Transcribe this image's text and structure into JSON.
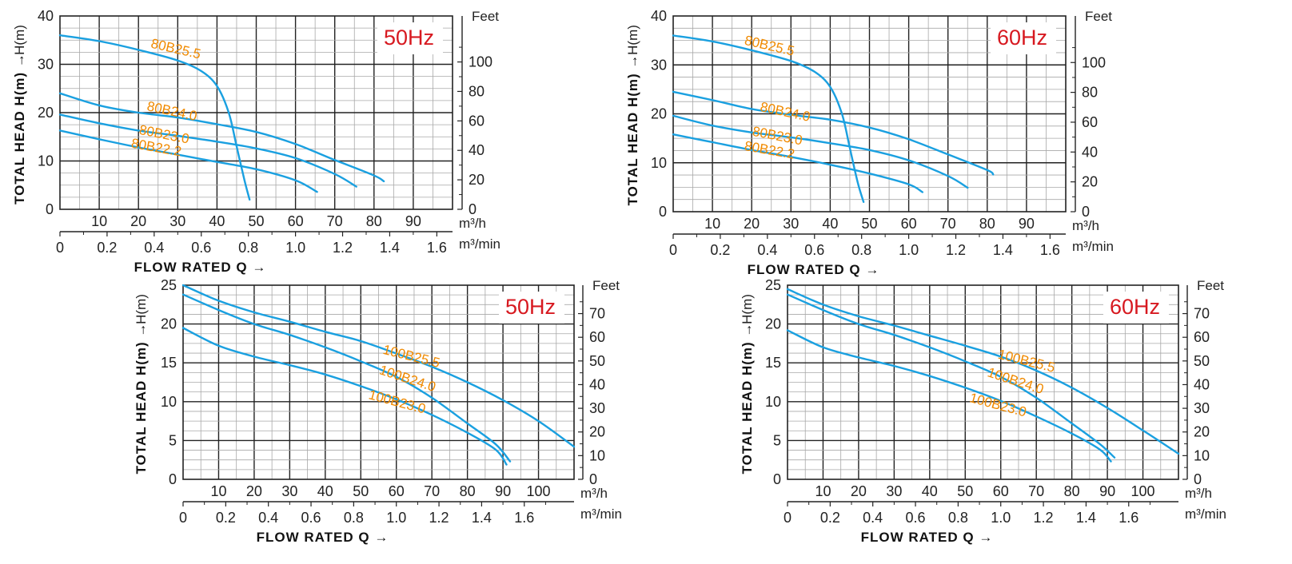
{
  "colors": {
    "curve": "#1aa0e0",
    "label": "#f08a00",
    "hz": "#d71920",
    "grid_major": "#222222",
    "grid_minor": "#a8a8a8"
  },
  "chart_data": [
    {
      "type": "line",
      "frequency_label": "50Hz",
      "ylabel": "TOTAL HEAD H(m) →",
      "y_unit": "H(m)",
      "xlabel": "FLOW RATED Q →",
      "x_unit_primary": "m³/h",
      "x_unit_secondary": "m³/min",
      "right_axis_title": "Feet",
      "ylim": [
        0,
        40
      ],
      "xlim": [
        0,
        100
      ],
      "y_ticks": [
        "0",
        "10",
        "20",
        "30",
        "40"
      ],
      "x_ticks": [
        "10",
        "20",
        "30",
        "40",
        "50",
        "60",
        "70",
        "80",
        "90"
      ],
      "x2_ticks": [
        "0",
        "0.2",
        "0.4",
        "0.6",
        "0.8",
        "1.0",
        "1.2",
        "1.4",
        "1.6"
      ],
      "right_ticks": [
        "0",
        "20",
        "40",
        "60",
        "80",
        "100"
      ],
      "series": [
        {
          "name": "80B25.5",
          "x": [
            0,
            10,
            20,
            30,
            36,
            40,
            43,
            45,
            47,
            48.3
          ],
          "y": [
            36,
            34.8,
            33,
            30.8,
            28.6,
            25.5,
            20,
            13,
            6,
            2
          ]
        },
        {
          "name": "80B24.0",
          "x": [
            0,
            10,
            20,
            30,
            40,
            50,
            60,
            70,
            80,
            82.5
          ],
          "y": [
            24,
            21.5,
            20,
            19,
            17.6,
            16,
            13.5,
            10.2,
            7,
            5.8
          ]
        },
        {
          "name": "80B23.0",
          "x": [
            0,
            10,
            20,
            30,
            40,
            50,
            60,
            70,
            75.5
          ],
          "y": [
            19.6,
            17.8,
            16.3,
            15.2,
            14,
            12.6,
            10.6,
            7.3,
            4.7
          ]
        },
        {
          "name": "80B22.2",
          "x": [
            0,
            10,
            20,
            30,
            40,
            50,
            60,
            65.5
          ],
          "y": [
            16.3,
            14.5,
            12.8,
            11.3,
            9.8,
            8.3,
            6,
            3.6
          ]
        }
      ]
    },
    {
      "type": "line",
      "frequency_label": "60Hz",
      "ylabel": "TOTAL HEAD H(m) →",
      "y_unit": "H(m)",
      "xlabel": "FLOW RATED Q →",
      "x_unit_primary": "m³/h",
      "x_unit_secondary": "m³/min",
      "right_axis_title": "Feet",
      "ylim": [
        0,
        40
      ],
      "xlim": [
        0,
        100
      ],
      "y_ticks": [
        "0",
        "10",
        "20",
        "30",
        "40"
      ],
      "x_ticks": [
        "10",
        "20",
        "30",
        "40",
        "50",
        "60",
        "70",
        "80",
        "90"
      ],
      "x2_ticks": [
        "0",
        "0.2",
        "0.4",
        "0.6",
        "0.8",
        "1.0",
        "1.2",
        "1.4",
        "1.6"
      ],
      "right_ticks": [
        "0",
        "20",
        "40",
        "60",
        "80",
        "100"
      ],
      "series": [
        {
          "name": "80B25.5",
          "x": [
            0,
            10,
            20,
            30,
            36,
            40,
            43,
            45,
            47,
            48.5
          ],
          "y": [
            36,
            34.8,
            33,
            30.8,
            28.6,
            25.5,
            20,
            13,
            6,
            2
          ]
        },
        {
          "name": "80B24.0",
          "x": [
            0,
            10,
            20,
            30,
            40,
            50,
            60,
            70,
            80,
            81.5
          ],
          "y": [
            24.5,
            22.8,
            21,
            19.8,
            18.8,
            17.2,
            14.8,
            11.7,
            8.5,
            7.6
          ]
        },
        {
          "name": "80B23.0",
          "x": [
            0,
            10,
            20,
            30,
            40,
            50,
            60,
            70,
            75
          ],
          "y": [
            19.6,
            17.6,
            16.2,
            15.2,
            14,
            12.6,
            10.5,
            7.3,
            4.9
          ]
        },
        {
          "name": "80B22.2",
          "x": [
            0,
            10,
            20,
            30,
            40,
            50,
            60,
            63.5
          ],
          "y": [
            15.8,
            14.2,
            12.6,
            11.2,
            9.6,
            7.8,
            5.6,
            4
          ]
        }
      ]
    },
    {
      "type": "line",
      "frequency_label": "50Hz",
      "ylabel": "TOTAL HEAD H(m) →",
      "y_unit": "H(m)",
      "xlabel": "FLOW RATED Q →",
      "x_unit_primary": "m³/h",
      "x_unit_secondary": "m³/min",
      "right_axis_title": "Feet",
      "ylim": [
        0,
        25
      ],
      "xlim": [
        0,
        110
      ],
      "y_ticks": [
        "0",
        "5",
        "10",
        "15",
        "20",
        "25"
      ],
      "x_ticks": [
        "10",
        "20",
        "30",
        "40",
        "50",
        "60",
        "70",
        "80",
        "90",
        "100"
      ],
      "x2_ticks": [
        "0",
        "0.2",
        "0.4",
        "0.6",
        "0.8",
        "1.0",
        "1.2",
        "1.4",
        "1.6"
      ],
      "right_ticks": [
        "0",
        "10",
        "20",
        "30",
        "40",
        "50",
        "60",
        "70"
      ],
      "series": [
        {
          "name": "100B25.5",
          "x": [
            0,
            10,
            20,
            30,
            40,
            50,
            60,
            70,
            80,
            90,
            100,
            110
          ],
          "y": [
            25,
            23,
            21.5,
            20.3,
            19,
            17.8,
            16.2,
            14.5,
            12.5,
            10.2,
            7.5,
            4.2
          ]
        },
        {
          "name": "100B24.0",
          "x": [
            0,
            10,
            20,
            30,
            40,
            50,
            60,
            70,
            80,
            88,
            92
          ],
          "y": [
            23.8,
            21.8,
            20,
            18.6,
            17,
            15.2,
            13.2,
            10.5,
            7.2,
            4.5,
            2.3
          ]
        },
        {
          "name": "100B23.0",
          "x": [
            0,
            10,
            20,
            30,
            40,
            50,
            60,
            70,
            80,
            88,
            91
          ],
          "y": [
            19.5,
            17.2,
            15.8,
            14.7,
            13.5,
            12,
            10.3,
            8.3,
            6,
            3.8,
            1.9
          ]
        }
      ]
    },
    {
      "type": "line",
      "frequency_label": "60Hz",
      "ylabel": "TOTAL HEAD H(m) →",
      "y_unit": "H(m)",
      "xlabel": "FLOW RATED Q →",
      "x_unit_primary": "m³/h",
      "x_unit_secondary": "m³/min",
      "right_axis_title": "Feet",
      "ylim": [
        0,
        25
      ],
      "xlim": [
        0,
        110
      ],
      "y_ticks": [
        "0",
        "5",
        "10",
        "15",
        "20",
        "25"
      ],
      "x_ticks": [
        "10",
        "20",
        "30",
        "40",
        "50",
        "60",
        "70",
        "80",
        "90",
        "100"
      ],
      "x2_ticks": [
        "0",
        "0.2",
        "0.4",
        "0.6",
        "0.8",
        "1.0",
        "1.2",
        "1.4",
        "1.6"
      ],
      "right_ticks": [
        "0",
        "10",
        "20",
        "30",
        "40",
        "50",
        "60",
        "70"
      ],
      "series": [
        {
          "name": "100B25.5",
          "x": [
            0,
            10,
            20,
            30,
            40,
            50,
            60,
            70,
            80,
            90,
            100,
            110
          ],
          "y": [
            24.5,
            22.5,
            21,
            19.8,
            18.5,
            17.2,
            15.8,
            14,
            11.8,
            9.2,
            6.3,
            3.3
          ]
        },
        {
          "name": "100B24.0",
          "x": [
            0,
            10,
            20,
            30,
            40,
            50,
            60,
            70,
            80,
            88,
            92
          ],
          "y": [
            23.8,
            21.8,
            20,
            18.6,
            17,
            15.2,
            13.2,
            10.5,
            7.2,
            4.5,
            2.8
          ]
        },
        {
          "name": "100B23.0",
          "x": [
            0,
            10,
            20,
            30,
            40,
            50,
            60,
            70,
            80,
            88,
            91
          ],
          "y": [
            19.2,
            17,
            15.7,
            14.6,
            13.3,
            11.8,
            10.1,
            8.1,
            5.9,
            3.8,
            2.3
          ]
        }
      ]
    }
  ]
}
